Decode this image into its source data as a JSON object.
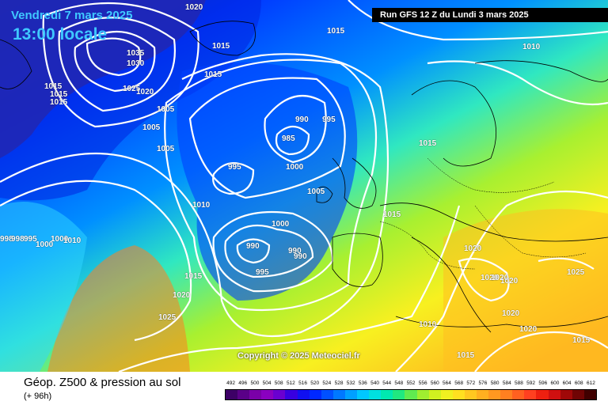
{
  "header": {
    "date": "Vendredi 7 mars 2025",
    "time": "13:00 locale",
    "run": "Run GFS 12 Z du Lundi 3 mars 2025"
  },
  "copyright": "Copyright © 2025 Meteociel.fr",
  "isobar_labels": [
    "1020",
    "1015",
    "1035",
    "1030",
    "1020",
    "1015",
    "1015",
    "1015",
    "1025",
    "1020",
    "1005",
    "1005",
    "1005",
    "990",
    "995",
    "985",
    "995",
    "1000",
    "1005",
    "1015",
    "1015",
    "1010",
    "1010",
    "998",
    "998",
    "995",
    "1000",
    "1010",
    "990",
    "1000",
    "990",
    "990",
    "995",
    "1015",
    "1020",
    "1025",
    "1020",
    "1020",
    "1020",
    "1020",
    "1025",
    "1020",
    "1020",
    "1010",
    "1015",
    "1015"
  ],
  "footer": {
    "title": "Géop. Z500 & pression au sol",
    "subtitle": "(+ 96h)"
  },
  "scale": {
    "values": [
      "492",
      "496",
      "500",
      "504",
      "508",
      "512",
      "516",
      "520",
      "524",
      "528",
      "532",
      "536",
      "540",
      "544",
      "548",
      "552",
      "556",
      "560",
      "564",
      "568",
      "572",
      "576",
      "580",
      "584",
      "588",
      "592",
      "596",
      "600",
      "604",
      "608",
      "612"
    ],
    "colors": [
      "#3d0066",
      "#5a0088",
      "#7a00a8",
      "#8a00c0",
      "#6a00d0",
      "#3800e0",
      "#1010f0",
      "#0028ff",
      "#0050ff",
      "#0078ff",
      "#00a0ff",
      "#00c8ff",
      "#00e0e0",
      "#00e8b0",
      "#20e880",
      "#60ea50",
      "#a0ee30",
      "#d0f020",
      "#f0f020",
      "#ffe020",
      "#ffc820",
      "#ffb020",
      "#ff9820",
      "#ff8020",
      "#ff6020",
      "#ff4020",
      "#ee2010",
      "#d01010",
      "#a00808",
      "#700404",
      "#400000"
    ]
  }
}
